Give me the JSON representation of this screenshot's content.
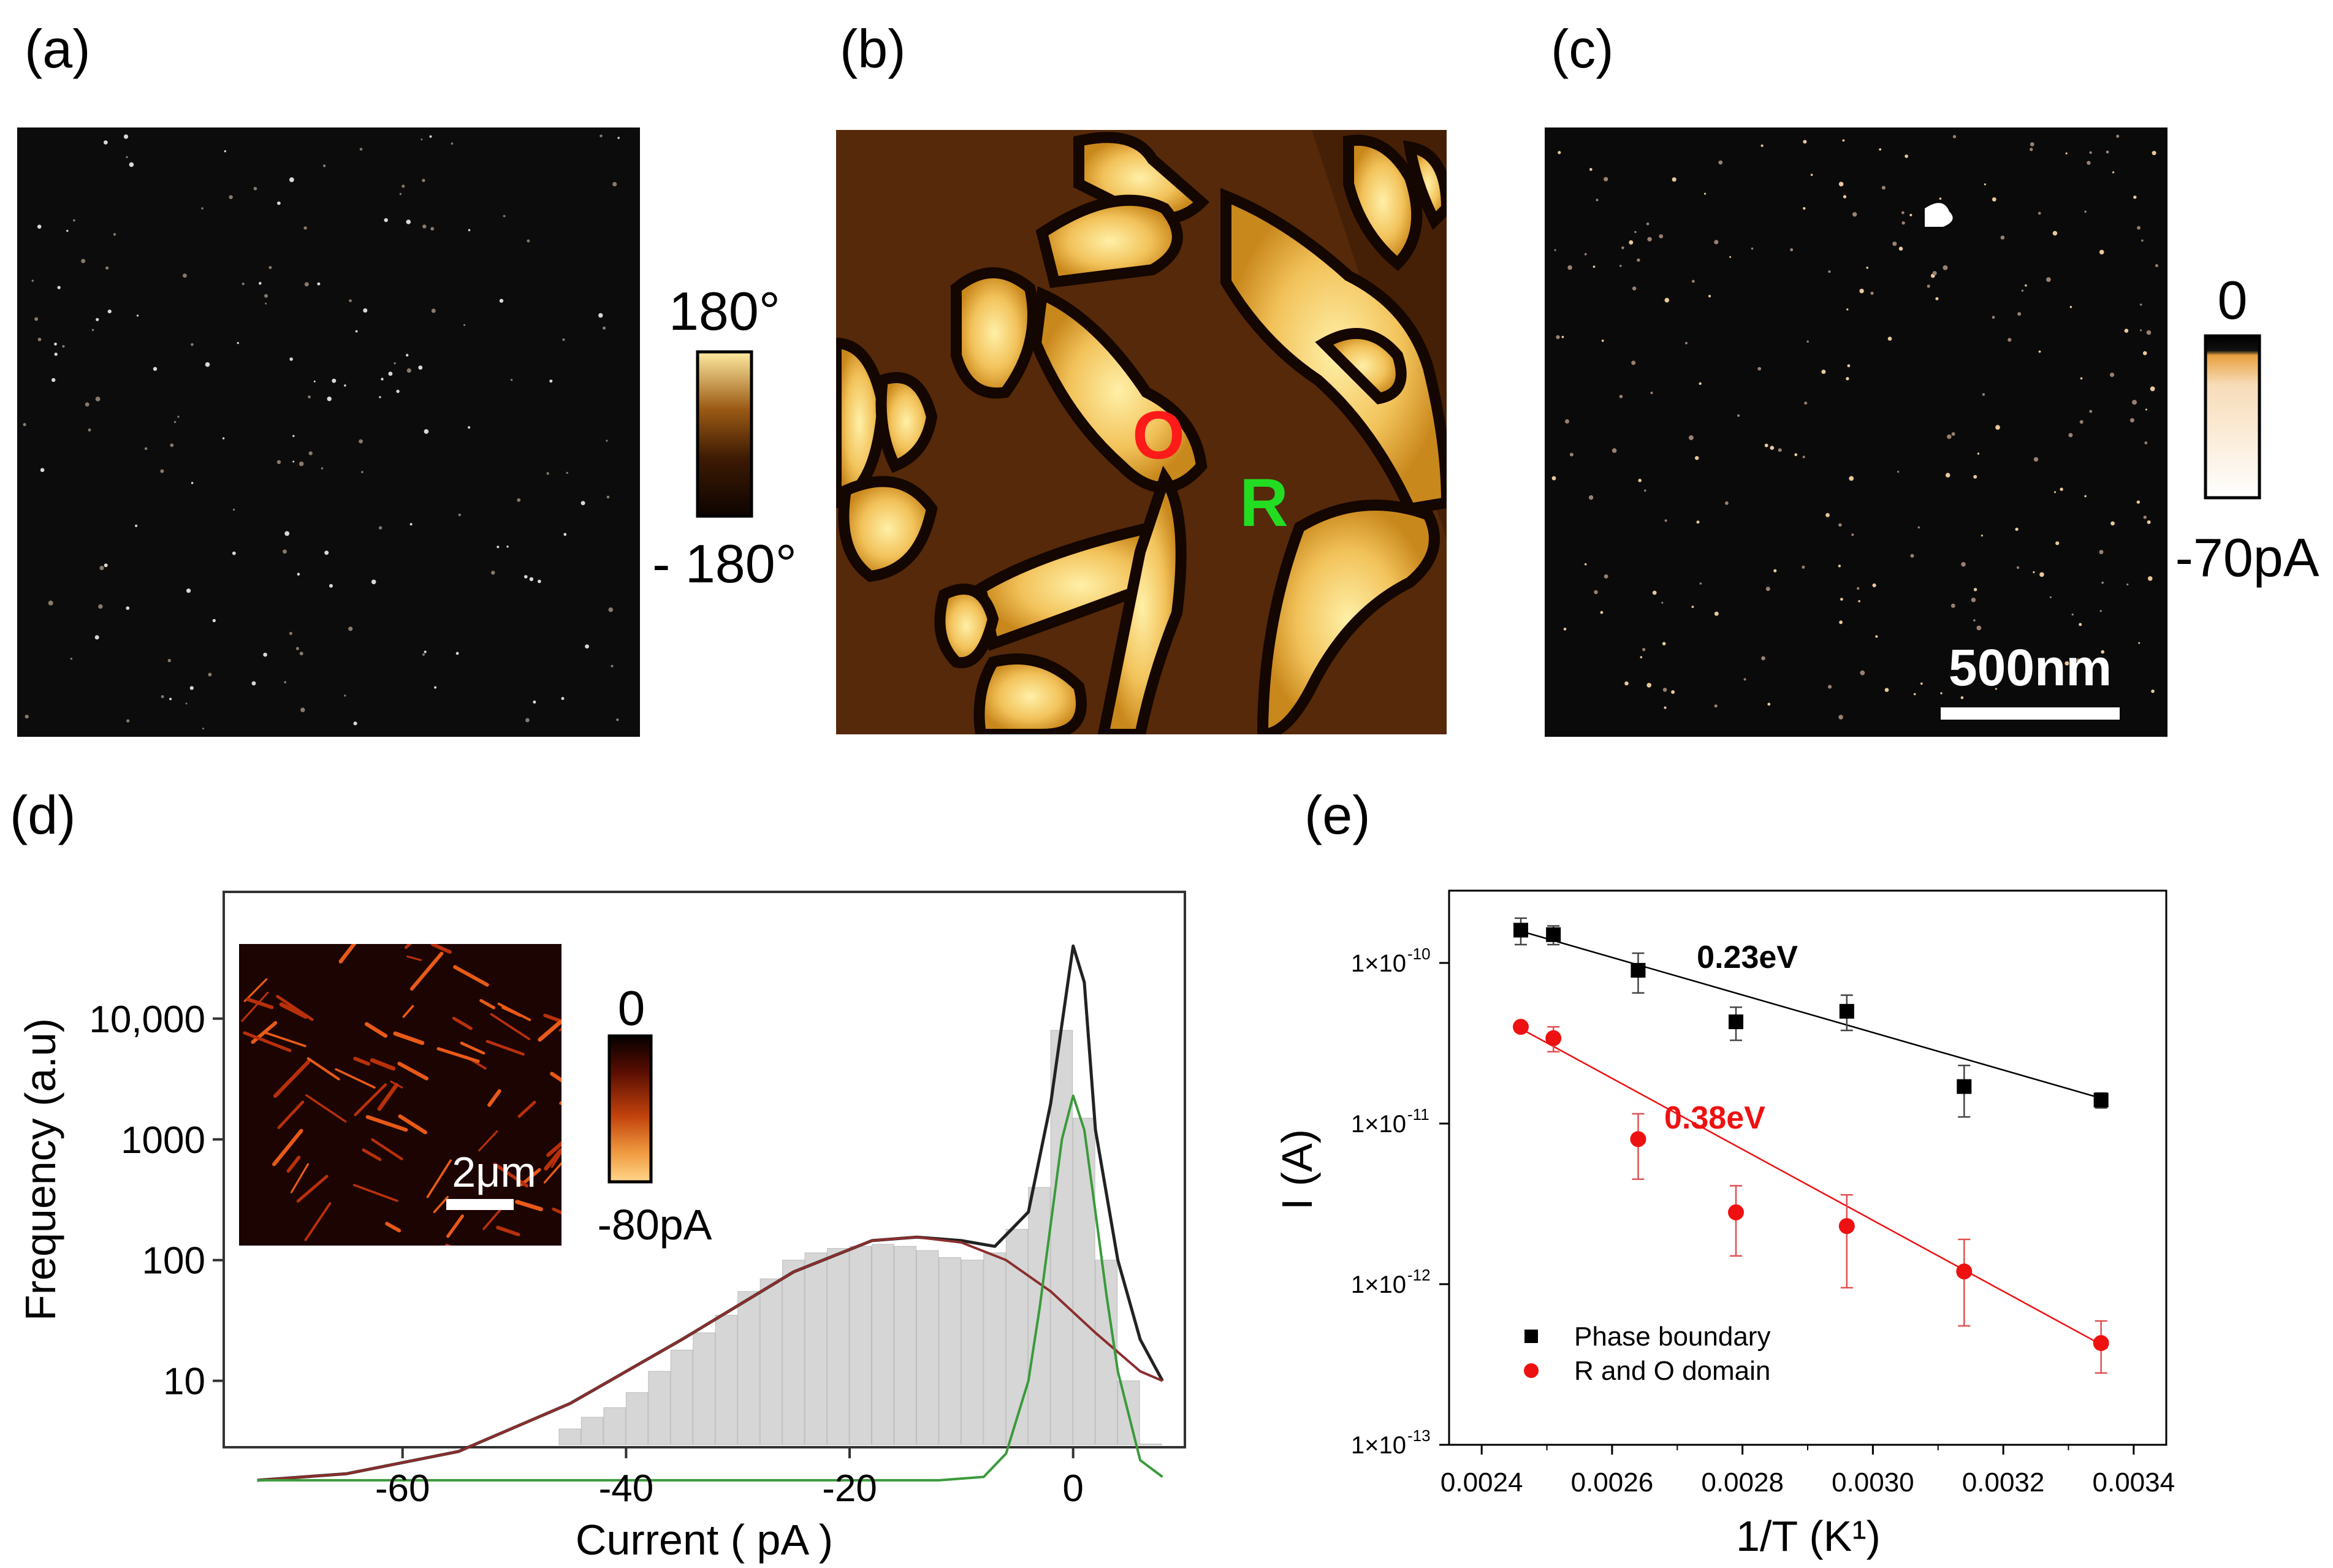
{
  "panels": {
    "a": {
      "label": "(a)",
      "colorbar": {
        "max_label": "180°",
        "min_label": "- 180°"
      }
    },
    "b": {
      "label": "(b)",
      "annotations": {
        "O": "O",
        "R": "R"
      },
      "colors": {
        "O": "#ff1a1a",
        "R": "#22dd22"
      }
    },
    "c": {
      "label": "(c)",
      "colorbar": {
        "max_label": "0",
        "min_label": "-70pA"
      },
      "scalebar_label": "500nm"
    },
    "d": {
      "label": "(d)",
      "inset": {
        "scalebar_label": "2μm",
        "colorbar_max": "0",
        "colorbar_min": "-80pA"
      }
    },
    "e": {
      "label": "(e)"
    }
  },
  "chart_data": [
    {
      "panel": "d",
      "type": "bar",
      "title": "",
      "xlabel": "Current ( pA )",
      "ylabel": "Frequency (a.u)",
      "xlim": [
        -76,
        10
      ],
      "ylim_log10": [
        0.45,
        5.05
      ],
      "y_scale": "log",
      "x_ticks": [
        -60,
        -40,
        -20,
        0
      ],
      "x_tick_labels": [
        "-60",
        "-40",
        "-20",
        "0"
      ],
      "y_ticks": [
        10,
        100,
        1000,
        10000
      ],
      "y_tick_labels": [
        "10",
        "100",
        "1000",
        "10,000"
      ],
      "histogram": {
        "color": "#d6d6d6",
        "bin_centers": [
          -53,
          -51,
          -49,
          -47,
          -45,
          -43,
          -41,
          -39,
          -37,
          -35,
          -33,
          -31,
          -29,
          -27,
          -25,
          -23,
          -21,
          -19,
          -17,
          -15,
          -13,
          -11,
          -9,
          -7,
          -5,
          -3,
          -1,
          1,
          3,
          5,
          7,
          9
        ],
        "values": [
          2.7,
          2.7,
          2.7,
          2.8,
          4,
          5,
          6,
          8,
          12,
          18,
          25,
          35,
          55,
          70,
          100,
          115,
          125,
          130,
          135,
          130,
          120,
          105,
          100,
          115,
          180,
          400,
          8000,
          1500,
          100,
          10,
          3,
          2.5
        ]
      },
      "series": [
        {
          "name": "",
          "role": "total-fit",
          "color": "#222222",
          "x": [
            -73,
            -65,
            -55,
            -45,
            -35,
            -25,
            -18,
            -14,
            -10,
            -7,
            -4,
            -2,
            -1,
            0,
            1,
            2,
            4,
            6,
            8
          ],
          "y": [
            1.5,
            1.7,
            2.6,
            6.5,
            22,
            80,
            145,
            155,
            145,
            130,
            250,
            2000,
            9000,
            40000,
            20000,
            1200,
            100,
            22,
            10
          ]
        },
        {
          "name": "",
          "role": "broad-fit",
          "color": "#8b2e2e",
          "x": [
            -73,
            -65,
            -55,
            -45,
            -35,
            -25,
            -18,
            -14,
            -10,
            -6,
            -2,
            2,
            6,
            8
          ],
          "y": [
            1.5,
            1.7,
            2.6,
            6.5,
            22,
            80,
            145,
            155,
            140,
            100,
            55,
            25,
            12,
            10
          ]
        },
        {
          "name": "",
          "role": "narrow-fit",
          "color": "#3a9a3a",
          "x": [
            -73,
            -12,
            -8,
            -6,
            -4,
            -3,
            -2,
            -1,
            0,
            1,
            2,
            3,
            4,
            6,
            8
          ],
          "y": [
            1.5,
            1.5,
            1.6,
            2.5,
            10,
            40,
            200,
            1000,
            2300,
            1200,
            250,
            50,
            12,
            2.2,
            1.6
          ]
        }
      ]
    },
    {
      "panel": "e",
      "type": "scatter",
      "title": "",
      "xlabel": "1/T (K¹)",
      "ylabel": "I (A)",
      "xlim": [
        0.00235,
        0.00345
      ],
      "ylim_log10": [
        -13,
        -9.55
      ],
      "y_scale": "log",
      "legend_position": "bottom-left",
      "x_ticks": [
        0.0024,
        0.0026,
        0.0028,
        0.003,
        0.0032,
        0.0034
      ],
      "x_tick_labels": [
        "0.0024",
        "0.0026",
        "0.0028",
        "0.0030",
        "0.0032",
        "0.0034"
      ],
      "y_ticks": [
        -13,
        -12,
        -11,
        -10
      ],
      "y_tick_labels": [
        "1×10",
        "1×10",
        "1×10",
        "1×10"
      ],
      "y_tick_exponents": [
        "-13",
        "-12",
        "-11",
        "-10"
      ],
      "series": [
        {
          "name": "Phase boundary",
          "marker": "square",
          "color": "#000000",
          "x": [
            0.00246,
            0.00251,
            0.00264,
            0.00279,
            0.00296,
            0.00314,
            0.00335
          ],
          "y": [
            1.6e-10,
            1.5e-10,
            9e-11,
            4.3e-11,
            5e-11,
            1.7e-11,
            1.4e-11
          ],
          "y_err_low": [
            1.3e-10,
            1.3e-10,
            6.5e-11,
            3.3e-11,
            3.8e-11,
            1.1e-11,
            1.25e-11
          ],
          "y_err_high": [
            1.9e-10,
            1.7e-10,
            1.15e-10,
            5.3e-11,
            6.3e-11,
            2.3e-11,
            1.55e-11
          ],
          "fit_x": [
            0.00245,
            0.00336
          ],
          "fit_y": [
            1.62e-10,
            1.4e-11
          ],
          "fit_label": "0.23eV",
          "fit_label_x": 0.00273,
          "fit_label_y": 9.3e-11
        },
        {
          "name": "R and O domain",
          "marker": "circle",
          "color": "#ee1111",
          "x": [
            0.00246,
            0.00251,
            0.00264,
            0.00279,
            0.00296,
            0.00314,
            0.00335
          ],
          "y": [
            4e-11,
            3.4e-11,
            8e-12,
            2.8e-12,
            2.3e-12,
            1.2e-12,
            4.3e-13
          ],
          "y_err_low": [
            3.8e-11,
            2.8e-11,
            4.5e-12,
            1.5e-12,
            9.5e-13,
            5.5e-13,
            2.8e-13
          ],
          "y_err_high": [
            4.2e-11,
            4e-11,
            1.15e-11,
            4.1e-12,
            3.6e-12,
            1.9e-12,
            5.9e-13
          ],
          "fit_x": [
            0.00245,
            0.00336
          ],
          "fit_y": [
            4.1e-11,
            4e-13
          ],
          "fit_label": "0.38eV",
          "fit_label_x": 0.00268,
          "fit_label_y": 9.3e-12
        }
      ]
    }
  ]
}
